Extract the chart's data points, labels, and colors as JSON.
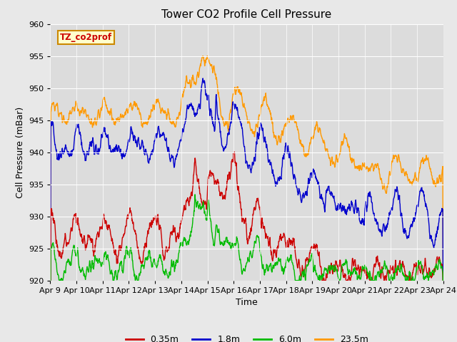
{
  "title": "Tower CO2 Profile Cell Pressure",
  "xlabel": "Time",
  "ylabel": "Cell Pressure (mBar)",
  "ylim": [
    920,
    960
  ],
  "background_color": "#e8e8e8",
  "plot_bg_color": "#dcdcdc",
  "legend_label": "TZ_co2prof",
  "legend_bg": "#ffffcc",
  "legend_border": "#cc8800",
  "series": {
    "0.35m": {
      "color": "#cc0000",
      "lw": 1.0
    },
    "1.8m": {
      "color": "#0000cc",
      "lw": 1.0
    },
    "6.0m": {
      "color": "#00bb00",
      "lw": 1.0
    },
    "23.5m": {
      "color": "#ff9900",
      "lw": 1.0
    }
  },
  "xtick_labels": [
    "Apr 9",
    "Apr 10",
    "Apr 11",
    "Apr 12",
    "Apr 13",
    "Apr 14",
    "Apr 15",
    "Apr 16",
    "Apr 17",
    "Apr 18",
    "Apr 19",
    "Apr 20",
    "Apr 21",
    "Apr 22",
    "Apr 23",
    "Apr 24"
  ],
  "ytick_labels": [
    920,
    925,
    930,
    935,
    940,
    945,
    950,
    955,
    960
  ],
  "grid_color": "#ffffff",
  "title_fontsize": 11,
  "label_fontsize": 9,
  "tick_fontsize": 8
}
